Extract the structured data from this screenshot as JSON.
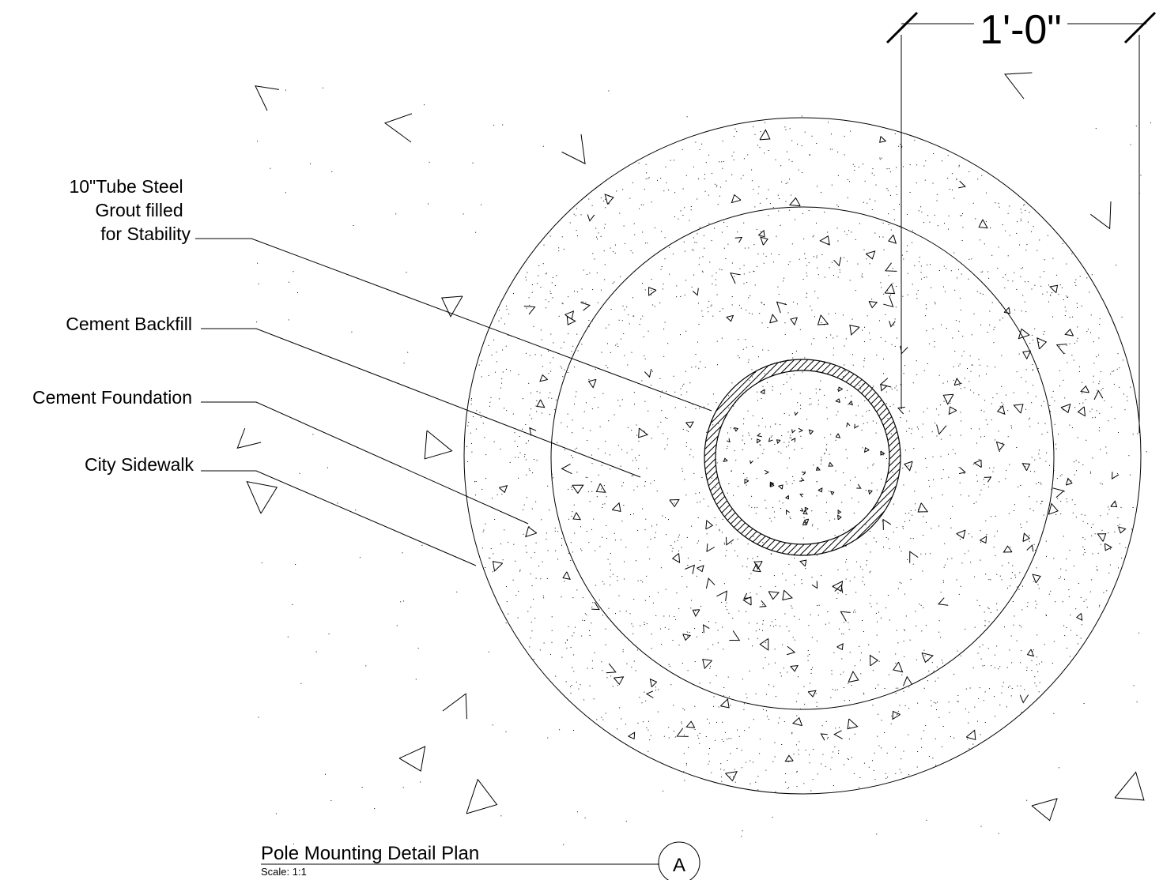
{
  "dimension": {
    "text": "1'-0\""
  },
  "callouts": [
    {
      "lines": [
        "10\"Tube Steel",
        "Grout filled",
        "for Stability"
      ]
    },
    {
      "lines": [
        "Cement Backfill"
      ]
    },
    {
      "lines": [
        "Cement Foundation"
      ]
    },
    {
      "lines": [
        "City Sidewalk"
      ]
    }
  ],
  "title_block": {
    "title": "Pole Mounting Detail Plan",
    "scale": "Scale: 1:1",
    "marker": "A"
  },
  "colors": {
    "ink": "#000000",
    "paper": "#ffffff"
  }
}
